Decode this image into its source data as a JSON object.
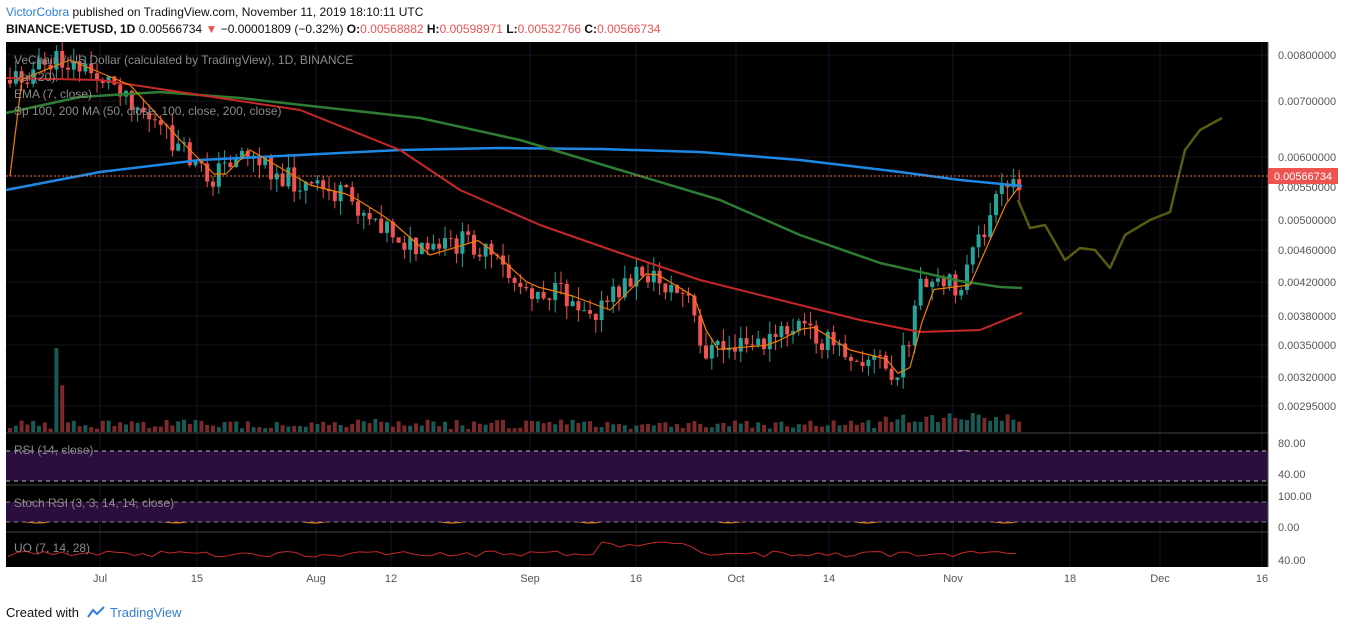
{
  "header": {
    "author": "VictorCobra",
    "published": "published on TradingView.com, November 11, 2019 18:10:11 UTC",
    "symbol": "BINANCE:VETUSD, 1D",
    "last": "0.00566734",
    "change_arrow": "▼",
    "change": "−0.00001809 (−0.32%)",
    "o_label": "O:",
    "o": "0.00568882",
    "h_label": "H:",
    "h": "0.00598971",
    "l_label": "L:",
    "l": "0.00532766",
    "c_label": "C:",
    "c": "0.00566734"
  },
  "legend": {
    "title": "VeChain / US Dollar (calculated by TradingView), 1D, BINANCE",
    "vol": "Vol (20)",
    "ema": "EMA (7, close)",
    "ma": "Sp 100, 200 MA (50, close, 100, close, 200, close)"
  },
  "panes": {
    "rsi": {
      "label": "RSI (14, close)",
      "ticks": [
        "80.00",
        "40.00"
      ]
    },
    "stoch": {
      "label": "Stoch RSI (3, 3, 14, 14, close)",
      "ticks": [
        "100.00",
        "0.00"
      ]
    },
    "uo": {
      "label": "UO (7, 14, 28)",
      "ticks": [
        "40.00"
      ]
    }
  },
  "price_axis": [
    "0.00800000",
    "0.00700000",
    "0.00600000",
    "0.00550000",
    "0.00500000",
    "0.00460000",
    "0.00420000",
    "0.00380000",
    "0.00350000",
    "0.00320000",
    "0.00295000"
  ],
  "price_label": "0.00566734",
  "time_axis": [
    "Jul",
    "15",
    "Aug",
    "12",
    "Sep",
    "16",
    "Oct",
    "14",
    "Nov",
    "18",
    "Dec",
    "16"
  ],
  "footer": {
    "created": "Created with",
    "brand": "TradingView"
  },
  "colors": {
    "background": "#000000",
    "up": "#26a69a",
    "down": "#ef5350",
    "ema": "#f57c00",
    "ma50": "#1e88e5",
    "ma100": "#2e7d32",
    "ma200": "#c62828",
    "projection": "#5a5a10",
    "rsi": "#8e44ad",
    "uo": "#c62828"
  },
  "chart_data": {
    "type": "candlestick",
    "symbol": "BINANCE:VETUSD",
    "interval": "1D",
    "y_axis": "log",
    "y_range": [
      0.0028,
      0.0082
    ],
    "last_price": 0.00566734,
    "ohlc_last": {
      "open": 0.00568882,
      "high": 0.00598971,
      "low": 0.00532766,
      "close": 0.00566734
    },
    "series": [
      {
        "name": "EMA (7, close)"
      },
      {
        "name": "MA 50"
      },
      {
        "name": "MA 100"
      },
      {
        "name": "MA 200"
      }
    ],
    "rsi_levels": [
      70,
      30
    ],
    "stoch_levels": [
      80,
      20
    ]
  }
}
